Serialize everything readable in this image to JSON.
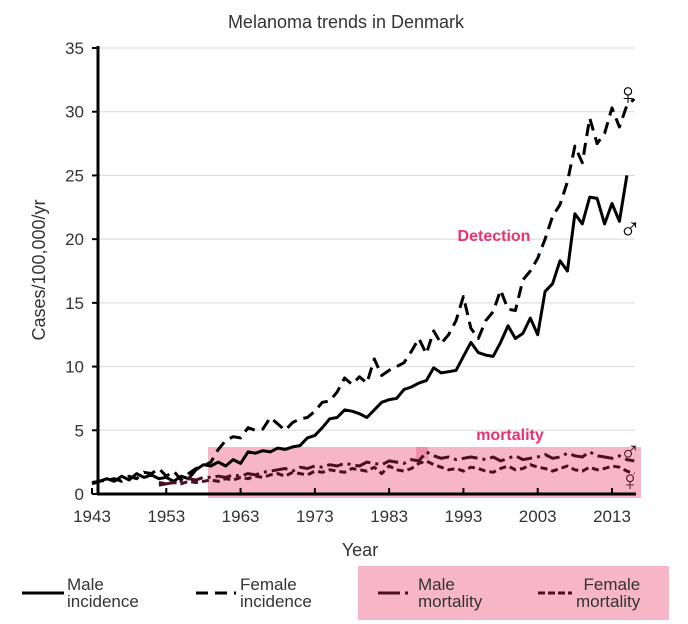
{
  "chart_data": {
    "type": "line",
    "title": "Melanoma trends in Denmark",
    "xlabel": "Year",
    "ylabel": "Cases/100,000/yr",
    "xlim": [
      1943,
      2017
    ],
    "ylim": [
      0,
      35
    ],
    "xticks": [
      "1943",
      "1953",
      "1963",
      "1973",
      "1983",
      "1993",
      "2003",
      "2013"
    ],
    "yticks": [
      "0",
      "5",
      "10",
      "15",
      "20",
      "25",
      "30",
      "35"
    ],
    "series": [
      {
        "name": "Male incidence",
        "style": "solid",
        "start": 1943,
        "values": [
          0.8,
          1.0,
          1.2,
          1.0,
          1.4,
          1.1,
          1.6,
          1.3,
          1.5,
          1.2,
          1.3,
          1.0,
          1.4,
          1.2,
          1.9,
          2.3,
          2.2,
          2.5,
          2.2,
          2.7,
          2.4,
          3.3,
          3.2,
          3.4,
          3.3,
          3.6,
          3.5,
          3.7,
          3.8,
          4.4,
          4.6,
          5.2,
          5.9,
          6.0,
          6.6,
          6.5,
          6.3,
          6.0,
          6.6,
          7.2,
          7.4,
          7.5,
          8.2,
          8.4,
          8.7,
          8.9,
          9.9,
          9.5,
          9.6,
          9.7,
          10.8,
          11.9,
          11.1,
          10.9,
          10.8,
          11.9,
          13.2,
          12.2,
          12.6,
          13.8,
          12.5,
          15.9,
          16.5,
          18.3,
          17.5,
          22.0,
          21.2,
          23.3,
          23.2,
          21.2,
          22.8,
          21.4,
          25.0
        ]
      },
      {
        "name": "Female incidence",
        "style": "dashed",
        "start": 1943,
        "values": [
          0.9,
          1.0,
          1.1,
          1.2,
          1.0,
          1.4,
          1.2,
          1.7,
          1.6,
          2.0,
          1.4,
          1.8,
          1.1,
          1.6,
          2.0,
          2.2,
          2.5,
          3.5,
          4.2,
          4.5,
          4.4,
          5.2,
          5.0,
          5.1,
          6.0,
          5.5,
          5.0,
          5.6,
          5.9,
          6.0,
          6.5,
          7.2,
          7.3,
          8.0,
          9.1,
          8.6,
          9.2,
          8.7,
          10.6,
          9.3,
          9.7,
          10.0,
          10.3,
          11.2,
          12.2,
          11.0,
          12.8,
          11.8,
          12.5,
          13.6,
          15.5,
          13.0,
          12.2,
          13.6,
          14.3,
          16.0,
          14.5,
          14.4,
          16.8,
          17.5,
          18.5,
          20.0,
          21.8,
          22.7,
          24.5,
          27.3,
          26.0,
          29.5,
          27.5,
          28.3,
          30.3,
          28.8,
          30.5,
          31.0
        ]
      },
      {
        "name": "Male mortality",
        "style": "dash-dot",
        "start": 1952,
        "values": [
          0.9,
          0.8,
          0.9,
          1.0,
          1.2,
          1.1,
          1.3,
          1.3,
          1.4,
          1.3,
          1.5,
          1.4,
          1.6,
          1.5,
          1.7,
          1.8,
          1.9,
          2.0,
          1.8,
          2.1,
          2.0,
          2.2,
          2.1,
          2.3,
          2.2,
          2.4,
          2.3,
          2.2,
          2.5,
          2.4,
          2.3,
          2.6,
          2.5,
          2.4,
          2.7,
          2.6,
          3.3,
          3.0,
          2.8,
          2.9,
          2.7,
          2.8,
          2.9,
          2.8,
          2.7,
          2.9,
          2.6,
          2.8,
          3.0,
          2.7,
          2.8,
          2.9,
          3.1,
          2.8,
          2.9,
          3.2,
          3.0,
          2.9,
          3.3,
          3.0,
          2.9,
          2.8,
          3.0,
          2.7,
          2.6
        ]
      },
      {
        "name": "Female mortality",
        "style": "short-dash",
        "start": 1952,
        "values": [
          0.7,
          0.8,
          0.9,
          0.8,
          1.0,
          0.9,
          1.0,
          1.1,
          1.0,
          1.2,
          1.1,
          1.3,
          1.2,
          1.4,
          1.3,
          1.5,
          1.6,
          1.4,
          1.7,
          1.6,
          1.5,
          1.8,
          1.7,
          1.9,
          1.8,
          1.7,
          2.0,
          1.9,
          1.8,
          2.1,
          1.6,
          2.2,
          1.9,
          1.8,
          2.0,
          2.4,
          2.6,
          2.3,
          2.1,
          1.9,
          2.0,
          1.8,
          2.1,
          2.0,
          1.8,
          1.7,
          2.0,
          2.2,
          1.9,
          2.0,
          2.3,
          2.1,
          2.0,
          1.8,
          2.0,
          2.2,
          1.9,
          1.8,
          2.1,
          1.9,
          2.0,
          2.2,
          2.1,
          1.8,
          1.6
        ]
      }
    ],
    "annotations": {
      "detection": "Detection",
      "mortality": "mortality",
      "female_symbol": "♀",
      "male_symbol": "♂"
    },
    "legend": {
      "placement": "bottom",
      "items": [
        [
          "Male",
          "incidence"
        ],
        [
          "Female",
          "incidence"
        ],
        [
          "Male",
          "mortality"
        ],
        [
          "Female",
          "mortality"
        ]
      ]
    },
    "colors": {
      "incidence": "#000000",
      "mortality": "#4a1020",
      "highlight": "#f7b5c8",
      "annotation": "#e8336e"
    }
  }
}
